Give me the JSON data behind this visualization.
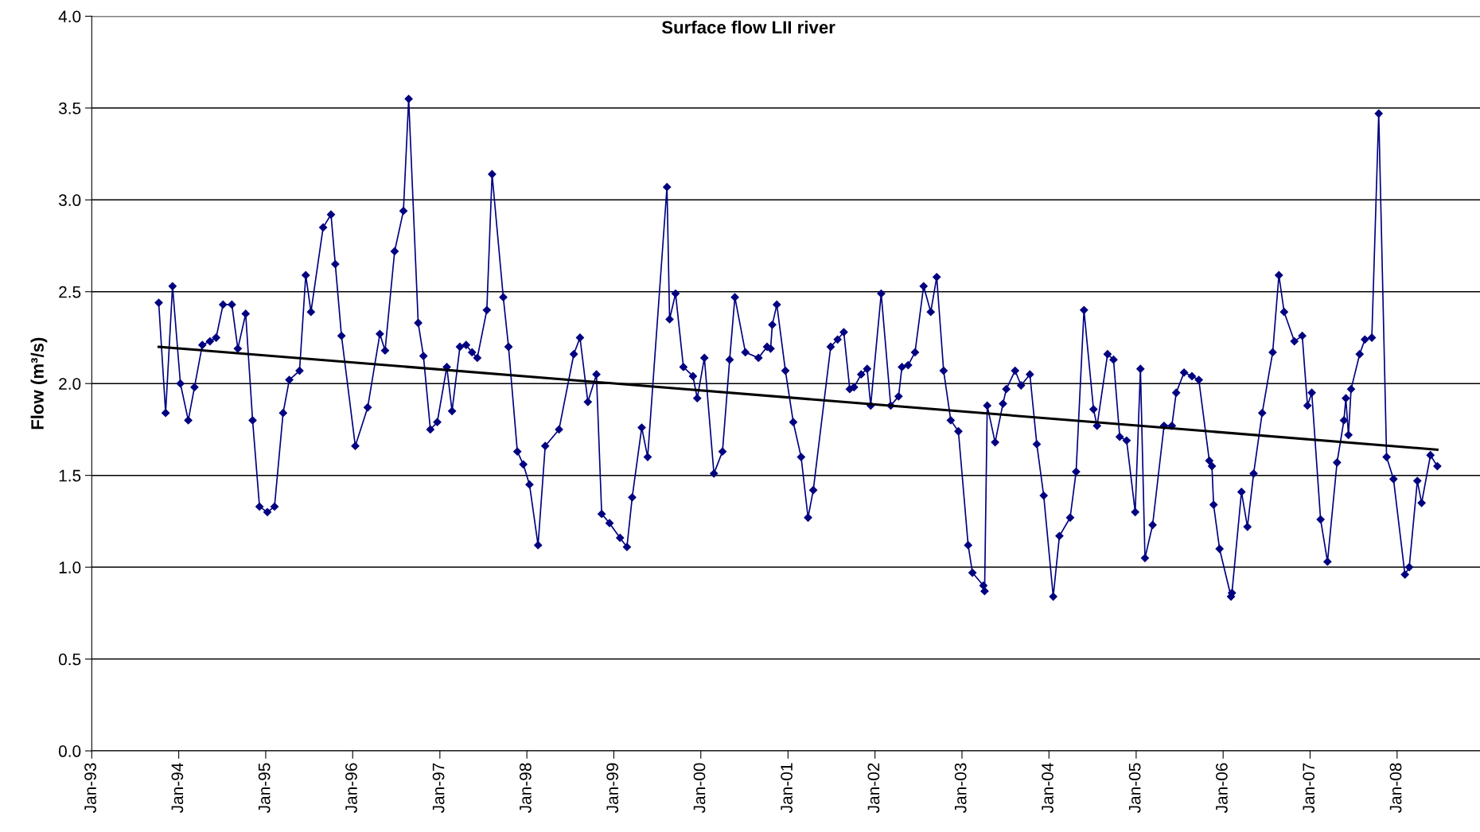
{
  "chart_data": {
    "type": "line",
    "title": "Surface flow LII river",
    "ylabel": "Flow (m³/s)",
    "xlim": [
      "1993-01-01",
      "2008-12-14"
    ],
    "xticks": [
      {
        "value": "1993-01-01",
        "label": "Jan-93"
      },
      {
        "value": "1994-01-01",
        "label": "Jan-94"
      },
      {
        "value": "1995-01-01",
        "label": "Jan-95"
      },
      {
        "value": "1996-01-01",
        "label": "Jan-96"
      },
      {
        "value": "1997-01-01",
        "label": "Jan-97"
      },
      {
        "value": "1998-01-01",
        "label": "Jan-98"
      },
      {
        "value": "1999-01-01",
        "label": "Jan-99"
      },
      {
        "value": "2000-01-01",
        "label": "Jan-00"
      },
      {
        "value": "2001-01-01",
        "label": "Jan-01"
      },
      {
        "value": "2002-01-01",
        "label": "Jan-02"
      },
      {
        "value": "2003-01-01",
        "label": "Jan-03"
      },
      {
        "value": "2004-01-01",
        "label": "Jan-04"
      },
      {
        "value": "2005-01-01",
        "label": "Jan-05"
      },
      {
        "value": "2006-01-01",
        "label": "Jan-06"
      },
      {
        "value": "2007-01-01",
        "label": "Jan-07"
      },
      {
        "value": "2008-01-01",
        "label": "Jan-08"
      }
    ],
    "ylim": [
      0,
      4
    ],
    "yticks": [
      {
        "value": 0,
        "label": "0.0"
      },
      {
        "value": 0.5,
        "label": "0.5"
      },
      {
        "value": 1,
        "label": "1.0"
      },
      {
        "value": 1.5,
        "label": "1.5"
      },
      {
        "value": 2,
        "label": "2.0"
      },
      {
        "value": 2.5,
        "label": "2.5"
      },
      {
        "value": 3,
        "label": "3.0"
      },
      {
        "value": 3.5,
        "label": "3.5"
      },
      {
        "value": 4,
        "label": "4.0"
      }
    ],
    "grid": "y",
    "legend": false,
    "series": [
      {
        "color": "#000080",
        "marker": "diamond",
        "line_style": "solid",
        "x": [
          "1993-10-09",
          "1993-11-07",
          "1993-12-06",
          "1994-01-08",
          "1994-02-10",
          "1994-03-08",
          "1994-04-10",
          "1994-05-12",
          "1994-06-07",
          "1994-07-06",
          "1994-08-12",
          "1994-09-06",
          "1994-10-09",
          "1994-11-07",
          "1994-12-06",
          "1995-01-08",
          "1995-02-07",
          "1995-03-15",
          "1995-04-10",
          "1995-05-23",
          "1995-06-18",
          "1995-07-10",
          "1995-08-30",
          "1995-10-02",
          "1995-10-20",
          "1995-11-15",
          "1996-01-12",
          "1996-03-04",
          "1996-04-24",
          "1996-05-16",
          "1996-06-25",
          "1996-08-01",
          "1996-08-23",
          "1996-10-02",
          "1996-10-24",
          "1996-11-22",
          "1996-12-21",
          "1997-01-30",
          "1997-02-21",
          "1997-03-26",
          "1997-04-21",
          "1997-05-16",
          "1997-06-07",
          "1997-07-17",
          "1997-08-08",
          "1997-09-24",
          "1997-10-16",
          "1997-11-22",
          "1997-12-17",
          "1998-01-12",
          "1998-02-17",
          "1998-03-19",
          "1998-05-16",
          "1998-07-17",
          "1998-08-12",
          "1998-09-14",
          "1998-10-20",
          "1998-11-11",
          "1998-12-14",
          "1999-01-27",
          "1999-02-25",
          "1999-03-19",
          "1999-04-28",
          "1999-05-23",
          "1999-08-12",
          "1999-08-23",
          "1999-09-17",
          "1999-10-20",
          "1999-11-29",
          "1999-12-17",
          "2000-01-16",
          "2000-02-25",
          "2000-04-01",
          "2000-05-01",
          "2000-05-23",
          "2000-07-06",
          "2000-08-30",
          "2000-10-05",
          "2000-10-20",
          "2000-10-27",
          "2000-11-15",
          "2000-12-21",
          "2001-01-23",
          "2001-02-25",
          "2001-03-26",
          "2001-04-17",
          "2001-06-29",
          "2001-07-28",
          "2001-08-23",
          "2001-09-17",
          "2001-10-05",
          "2001-11-04",
          "2001-11-29",
          "2001-12-14",
          "2002-01-27",
          "2002-03-08",
          "2002-04-10",
          "2002-04-24",
          "2002-05-20",
          "2002-06-18",
          "2002-07-24",
          "2002-08-23",
          "2002-09-17",
          "2002-10-16",
          "2002-11-15",
          "2002-12-17",
          "2003-01-27",
          "2003-02-14",
          "2003-04-01",
          "2003-04-06",
          "2003-04-17",
          "2003-05-20",
          "2003-06-22",
          "2003-07-06",
          "2003-08-12",
          "2003-09-06",
          "2003-10-13",
          "2003-11-11",
          "2003-12-10",
          "2004-01-19",
          "2004-02-14",
          "2004-03-30",
          "2004-04-24",
          "2004-05-27",
          "2004-07-06",
          "2004-07-21",
          "2004-09-03",
          "2004-09-28",
          "2004-10-24",
          "2004-11-22",
          "2004-12-28",
          "2005-01-19",
          "2005-02-07",
          "2005-03-11",
          "2005-04-28",
          "2005-05-31",
          "2005-06-18",
          "2005-07-21",
          "2005-08-23",
          "2005-09-21",
          "2005-11-04",
          "2005-11-15",
          "2005-11-22",
          "2005-12-17",
          "2006-02-03",
          "2006-02-07",
          "2006-03-19",
          "2006-04-13",
          "2006-05-09",
          "2006-06-14",
          "2006-07-28",
          "2006-08-23",
          "2006-09-14",
          "2006-10-27",
          "2006-11-29",
          "2006-12-21",
          "2007-01-08",
          "2007-02-14",
          "2007-03-15",
          "2007-04-24",
          "2007-05-23",
          "2007-05-31",
          "2007-06-11",
          "2007-06-22",
          "2007-07-28",
          "2007-08-19",
          "2007-09-17",
          "2007-10-16",
          "2007-11-18",
          "2007-12-17",
          "2008-02-03",
          "2008-02-21",
          "2008-03-26",
          "2008-04-13",
          "2008-05-20",
          "2008-06-18"
        ],
        "values": [
          2.44,
          1.84,
          2.53,
          2.0,
          1.8,
          1.98,
          2.21,
          2.23,
          2.25,
          2.43,
          2.43,
          2.19,
          2.38,
          1.8,
          1.33,
          1.3,
          1.33,
          1.84,
          2.02,
          2.07,
          2.59,
          2.39,
          2.85,
          2.92,
          2.65,
          2.26,
          1.66,
          1.87,
          2.27,
          2.18,
          2.72,
          2.94,
          3.55,
          2.33,
          2.15,
          1.75,
          1.79,
          2.09,
          1.85,
          2.2,
          2.21,
          2.17,
          2.14,
          2.4,
          3.14,
          2.47,
          2.2,
          1.63,
          1.56,
          1.45,
          1.12,
          1.66,
          1.75,
          2.16,
          2.25,
          1.9,
          2.05,
          1.29,
          1.24,
          1.16,
          1.11,
          1.38,
          1.76,
          1.6,
          3.07,
          2.35,
          2.49,
          2.09,
          2.04,
          1.92,
          2.14,
          1.51,
          1.63,
          2.13,
          2.47,
          2.17,
          2.14,
          2.2,
          2.19,
          2.32,
          2.43,
          2.07,
          1.79,
          1.6,
          1.27,
          1.42,
          2.2,
          2.24,
          2.28,
          1.97,
          1.98,
          2.05,
          2.08,
          1.88,
          2.49,
          1.88,
          1.93,
          2.09,
          2.1,
          2.17,
          2.53,
          2.39,
          2.58,
          2.07,
          1.8,
          1.74,
          1.12,
          0.97,
          0.9,
          0.87,
          1.88,
          1.68,
          1.89,
          1.97,
          2.07,
          1.99,
          2.05,
          1.67,
          1.39,
          0.84,
          1.17,
          1.27,
          1.52,
          2.4,
          1.86,
          1.77,
          2.16,
          2.13,
          1.71,
          1.69,
          1.3,
          2.08,
          1.05,
          1.23,
          1.77,
          1.77,
          1.95,
          2.06,
          2.04,
          2.02,
          1.58,
          1.55,
          1.34,
          1.1,
          0.84,
          0.86,
          1.41,
          1.22,
          1.51,
          1.84,
          2.17,
          2.59,
          2.39,
          2.23,
          2.26,
          1.88,
          1.95,
          1.26,
          1.03,
          1.57,
          1.8,
          1.92,
          1.72,
          1.97,
          2.16,
          2.24,
          2.25,
          3.47,
          1.6,
          1.48,
          0.96,
          1.0,
          1.47,
          1.35,
          1.61,
          1.55
        ]
      },
      {
        "color": "#000000",
        "marker": "none",
        "line_style": "solid",
        "x": [
          "1993-10-09",
          "2008-06-18"
        ],
        "values": [
          2.2,
          1.64
        ]
      }
    ]
  }
}
